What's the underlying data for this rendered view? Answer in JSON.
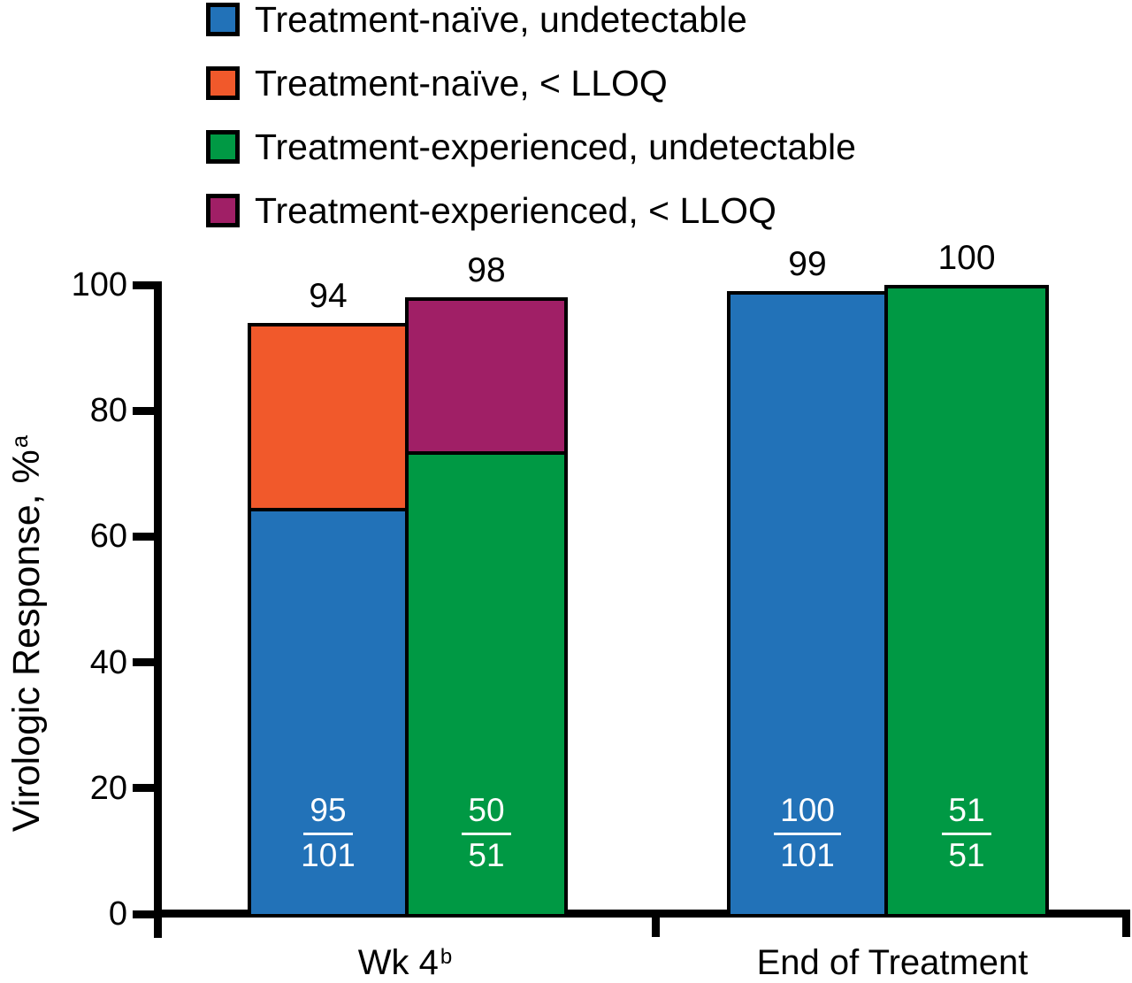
{
  "figure": {
    "background": "#FFFFFF",
    "text_color": "#000000"
  },
  "colors": {
    "treatment_naive_undetectable": "#2272B8",
    "treatment_naive_lloq": "#F1592B",
    "treatment_experienced_undetectable": "#009944",
    "treatment_experienced_lloq": "#A01F66",
    "axis": "#000000",
    "bar_inner_text": "#FFFFFF"
  },
  "legend": {
    "items": [
      {
        "label": "Treatment-naïve, undetectable",
        "color": "#2272B8"
      },
      {
        "label": "Treatment-naïve, < LLOQ",
        "color": "#F1592B"
      },
      {
        "label": "Treatment-experienced, undetectable",
        "color": "#009944"
      },
      {
        "label": "Treatment-experienced, < LLOQ",
        "color": "#A01F66"
      }
    ]
  },
  "y_axis": {
    "title_main": "Virologic Response, %",
    "title_superscript": "a",
    "tick_values": [
      100,
      80,
      60,
      40,
      20,
      0
    ],
    "tick_labels": [
      "100",
      "80",
      "60",
      "40",
      "20",
      "0"
    ]
  },
  "x_axis": {
    "groups": [
      {
        "label_main": "Wk 4",
        "label_superscript": "b"
      },
      {
        "label_main": "End of Treatment",
        "label_superscript": ""
      }
    ]
  },
  "chart_data": {
    "type": "bar",
    "stacked": true,
    "title": "",
    "xlabel": "",
    "ylabel": "Virologic Response, %(a)",
    "ylim": [
      0,
      100
    ],
    "grid": false,
    "legend_position": "top-left",
    "categories": [
      "Wk 4(b)",
      "End of Treatment"
    ],
    "series_names": [
      "Treatment-naïve, undetectable",
      "Treatment-naïve, < LLOQ",
      "Treatment-experienced, undetectable",
      "Treatment-experienced, < LLOQ"
    ],
    "bars": [
      {
        "category": "Wk 4(b)",
        "population": "Treatment-naïve",
        "total_percent": 94,
        "total_label": "94",
        "fraction_numerator": "95",
        "fraction_denominator": "101",
        "segments": [
          {
            "series": "Treatment-naïve, undetectable",
            "percent": 64.5,
            "color": "#2272B8"
          },
          {
            "series": "Treatment-naïve, < LLOQ",
            "percent": 29.5,
            "color": "#F1592B"
          }
        ]
      },
      {
        "category": "Wk 4(b)",
        "population": "Treatment-experienced",
        "total_percent": 98,
        "total_label": "98",
        "fraction_numerator": "50",
        "fraction_denominator": "51",
        "segments": [
          {
            "series": "Treatment-experienced, undetectable",
            "percent": 73.5,
            "color": "#009944"
          },
          {
            "series": "Treatment-experienced, < LLOQ",
            "percent": 24.5,
            "color": "#A01F66"
          }
        ]
      },
      {
        "category": "End of Treatment",
        "population": "Treatment-naïve",
        "total_percent": 99,
        "total_label": "99",
        "fraction_numerator": "100",
        "fraction_denominator": "101",
        "segments": [
          {
            "series": "Treatment-naïve, undetectable",
            "percent": 99,
            "color": "#2272B8"
          }
        ]
      },
      {
        "category": "End of Treatment",
        "population": "Treatment-experienced",
        "total_percent": 100,
        "total_label": "100",
        "fraction_numerator": "51",
        "fraction_denominator": "51",
        "segments": [
          {
            "series": "Treatment-experienced, undetectable",
            "percent": 100,
            "color": "#009944"
          }
        ]
      }
    ]
  }
}
